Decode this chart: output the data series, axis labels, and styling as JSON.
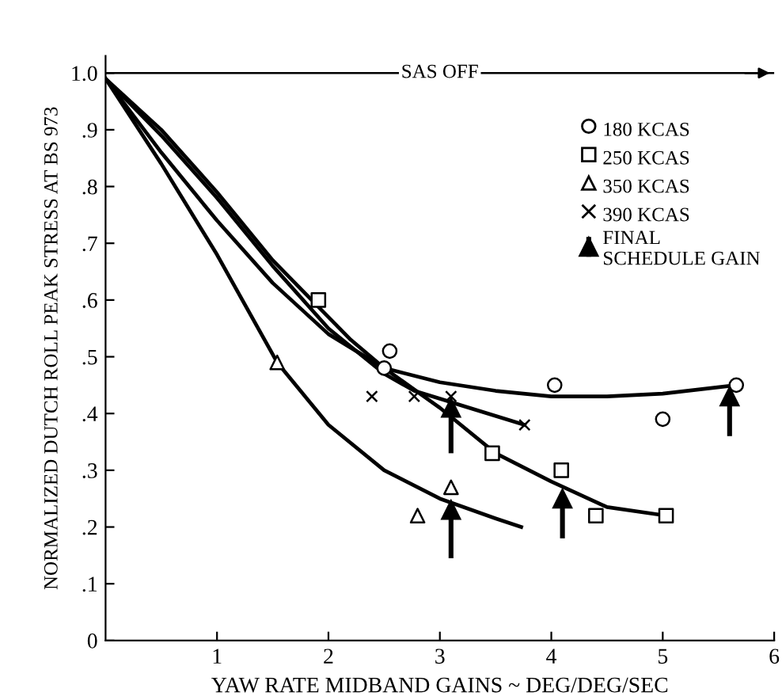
{
  "chart_data": {
    "type": "scatter",
    "xlabel": "YAW RATE MIDBAND GAINS ~ DEG/DEG/SEC",
    "ylabel": "NORMALIZED DUTCH ROLL PEAK STRESS AT BS 973",
    "xlim": [
      0,
      6
    ],
    "ylim": [
      0,
      1.03
    ],
    "xticks": [
      1,
      2,
      3,
      4,
      5,
      6
    ],
    "yticks": [
      0,
      {
        "value": 0.1,
        "label": ".1"
      },
      {
        "value": 0.2,
        "label": ".2"
      },
      {
        "value": 0.3,
        "label": ".3"
      },
      {
        "value": 0.4,
        "label": ".4"
      },
      {
        "value": 0.5,
        "label": ".5"
      },
      {
        "value": 0.6,
        "label": ".6"
      },
      {
        "value": 0.7,
        "label": ".7"
      },
      {
        "value": 0.8,
        "label": ".8"
      },
      {
        "value": 0.9,
        "label": ".9"
      },
      {
        "value": 1.0,
        "label": "1.0"
      }
    ],
    "grid": false,
    "legend": "top right",
    "ref_lines": [
      {
        "axis": "y",
        "value": 1.0,
        "label": "SAS OFF",
        "color": "#000000"
      }
    ],
    "series": [
      {
        "name": "180 KCAS",
        "type": "scatter",
        "marker": "circle",
        "color": "#000000",
        "x": [
          2.55,
          2.5,
          4.03,
          5.0,
          5.66
        ],
        "values": [
          0.51,
          0.48,
          0.45,
          0.39,
          0.45
        ]
      },
      {
        "name": "250 KCAS",
        "type": "scatter",
        "marker": "square",
        "color": "#000000",
        "x": [
          1.91,
          3.47,
          4.09,
          4.4,
          5.03
        ],
        "values": [
          0.6,
          0.33,
          0.3,
          0.22,
          0.22
        ]
      },
      {
        "name": "350 KCAS",
        "type": "scatter",
        "marker": "triangle",
        "color": "#000000",
        "x": [
          1.54,
          2.8,
          3.1
        ],
        "values": [
          0.49,
          0.22,
          0.27
        ]
      },
      {
        "name": "390 KCAS",
        "type": "scatter",
        "marker": "cross",
        "color": "#000000",
        "x": [
          2.39,
          2.77,
          3.1,
          3.76
        ],
        "values": [
          0.43,
          0.43,
          0.43,
          0.38
        ]
      },
      {
        "type": "line",
        "color": "#000000",
        "x": [
          0,
          0.5,
          1,
          1.5,
          2,
          2.5,
          3,
          3.5,
          4,
          4.5,
          5,
          5.66
        ],
        "values": [
          0.99,
          0.86,
          0.74,
          0.63,
          0.54,
          0.48,
          0.455,
          0.44,
          0.43,
          0.43,
          0.435,
          0.45
        ]
      },
      {
        "type": "line",
        "color": "#000000",
        "x": [
          0,
          0.5,
          1,
          1.5,
          1.9,
          2.2,
          2.5,
          3,
          3.5,
          4,
          4.5,
          5.03
        ],
        "values": [
          0.99,
          0.9,
          0.79,
          0.67,
          0.59,
          0.53,
          0.48,
          0.41,
          0.33,
          0.28,
          0.235,
          0.22
        ]
      },
      {
        "type": "line",
        "color": "#000000",
        "x": [
          0,
          0.5,
          1,
          1.54,
          2,
          2.5,
          3,
          3.5,
          3.73
        ],
        "values": [
          0.99,
          0.84,
          0.68,
          0.49,
          0.38,
          0.3,
          0.25,
          0.215,
          0.2
        ]
      },
      {
        "type": "line",
        "color": "#000000",
        "x": [
          0,
          0.5,
          1,
          1.5,
          2,
          2.5,
          2.77,
          3.1,
          3.76
        ],
        "values": [
          0.99,
          0.89,
          0.78,
          0.66,
          0.55,
          0.47,
          0.44,
          0.42,
          0.38
        ]
      },
      {
        "name": "FINAL\nSCHEDULE GAIN",
        "type": "scatter",
        "marker": "triangle",
        "color": "#000000",
        "x": [
          3.1,
          3.1,
          4.1,
          5.6
        ],
        "values": [
          0.41,
          0.23,
          0.25,
          0.43
        ],
        "errors": [
          [
            0.33,
            0.41
          ],
          [
            0.145,
            0.23
          ],
          [
            0.18,
            0.25
          ],
          [
            0.36,
            0.43
          ]
        ]
      }
    ]
  }
}
